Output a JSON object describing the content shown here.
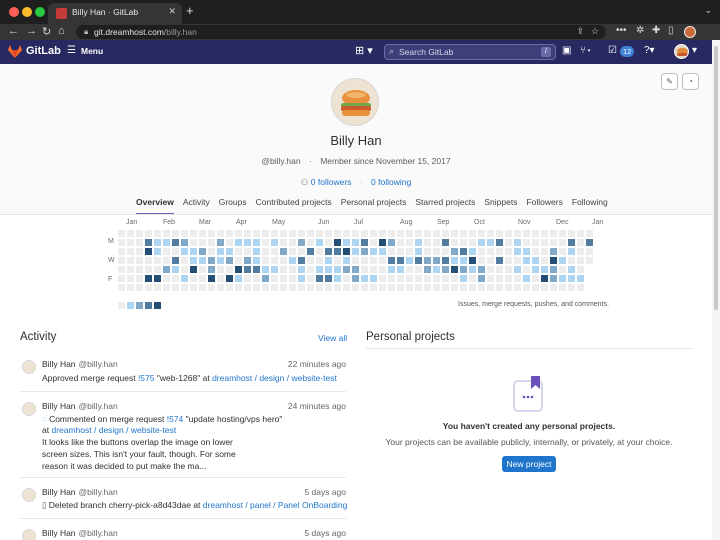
{
  "browser": {
    "tab_title": "Billy Han · GitLab",
    "url_host": "git.dreamhost.com",
    "url_path": "/billy.han"
  },
  "header": {
    "brand": "GitLab",
    "menu_label": "Menu",
    "search_placeholder": "Search GitLab",
    "search_shortcut": "/",
    "todo_count": "12"
  },
  "profile": {
    "name": "Billy Han",
    "handle": "@billy.han",
    "member_since": "Member since November 15, 2017",
    "followers": "0 followers",
    "following": "0 following"
  },
  "tabs": [
    {
      "label": "Overview",
      "active": true
    },
    {
      "label": "Activity"
    },
    {
      "label": "Groups"
    },
    {
      "label": "Contributed projects"
    },
    {
      "label": "Personal projects"
    },
    {
      "label": "Starred projects"
    },
    {
      "label": "Snippets"
    },
    {
      "label": "Followers"
    },
    {
      "label": "Following"
    }
  ],
  "calendar": {
    "months": [
      "Jan",
      "Feb",
      "Mar",
      "Apr",
      "May",
      "Jun",
      "Jul",
      "Aug",
      "Sep",
      "Oct",
      "Nov",
      "Dec",
      "Jan"
    ],
    "day_labels": [
      "M",
      "W",
      "F"
    ],
    "caption": "Issues, merge requests, pushes, and comments.",
    "colors": [
      "#ededed",
      "#acd5f2",
      "#7fa8c9",
      "#527ba0",
      "#254e77"
    ]
  },
  "activity": {
    "title": "Activity",
    "view_all": "View all",
    "items": [
      {
        "user": "Billy Han",
        "handle": "@billy.han",
        "time": "22 minutes ago",
        "action": "Approved merge request",
        "ref": "!575",
        "ref_title": "\"web-1268\"",
        "at": "at",
        "project": "dreamhost / design / website-test"
      },
      {
        "user": "Billy Han",
        "handle": "@billy.han",
        "time": "24 minutes ago",
        "action": "Commented on merge request",
        "ref": "!574",
        "ref_title": "\"update hosting/vps hero\"",
        "at": "at",
        "project": "dreamhost / design / website-test",
        "note": "It looks like the buttons overlap the image on lower screen sizes. This isn't your fault, though. For some reason it was decided to put make the ma..."
      },
      {
        "user": "Billy Han",
        "handle": "@billy.han",
        "time": "5 days ago",
        "action": "Deleted branch",
        "ref": "cherry-pick-a8d43dae",
        "at": "at",
        "project": "dreamhost / panel / Panel OnBoarding"
      },
      {
        "user": "Billy Han",
        "handle": "@billy.han",
        "time": "5 days ago"
      }
    ]
  },
  "personal_projects": {
    "title": "Personal projects",
    "empty_title": "You haven't created any personal projects.",
    "empty_desc": "Your projects can be available publicly, internally, or privately, at your choice.",
    "new_button": "New project"
  }
}
